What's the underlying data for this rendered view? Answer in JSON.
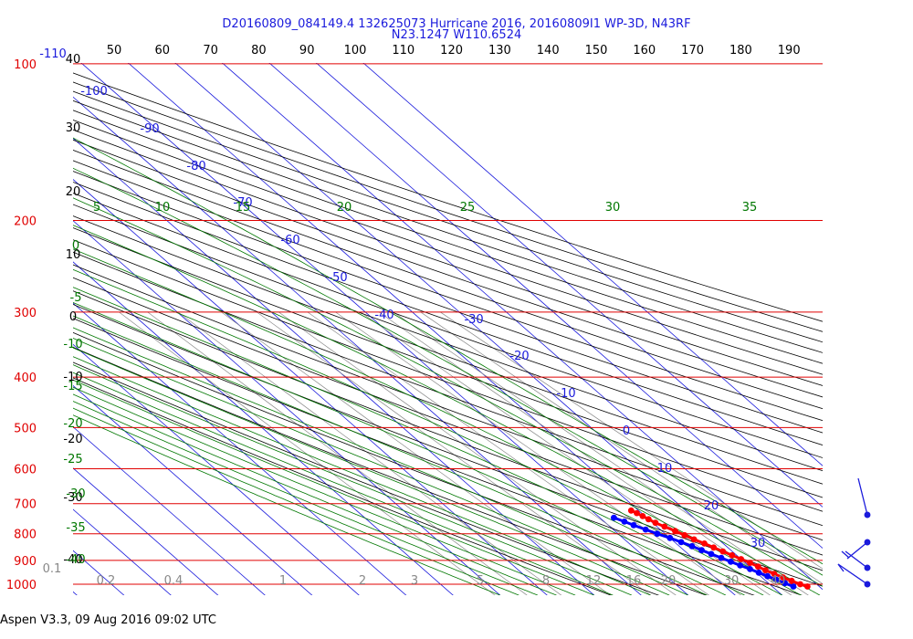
{
  "header": {
    "title_line1": "D20160809_084149.4 132625073 Hurricane 2016, 20160809I1 WP-3D, N43RF",
    "title_line2": "N23.1247 W110.6524"
  },
  "footer": {
    "version": "Aspen V3.3, 09 Aug 2016  09:02 UTC"
  },
  "colors": {
    "isobar": "#e00000",
    "isotherm": "#1a1adc",
    "dry_adiabat": "#000000",
    "moist_adiabat": "#007700",
    "mixing_ratio": "#888888",
    "temperature_trace": "#ff0000",
    "dewpoint_trace": "#0000ff"
  },
  "chart_data": {
    "type": "scatter",
    "diagram": "skew-T log-P",
    "pressure_levels_hPa": [
      "100",
      "200",
      "300",
      "400",
      "500",
      "600",
      "700",
      "800",
      "900",
      "1000"
    ],
    "isotherm_labels_C": [
      "-110",
      "-100",
      "-90",
      "-80",
      "-70",
      "-60",
      "-50",
      "-40",
      "-30",
      "-20",
      "-10",
      "0",
      "10",
      "20",
      "30"
    ],
    "top_axis_labels": [
      "50",
      "60",
      "70",
      "80",
      "90",
      "100",
      "110",
      "120",
      "130",
      "140",
      "150",
      "160",
      "170",
      "180",
      "190"
    ],
    "left_axis_labels": [
      "40",
      "30",
      "20",
      "10",
      "0",
      "-10",
      "-20",
      "-30",
      "-40"
    ],
    "theta_e_labels": [
      "5",
      "10",
      "15",
      "20",
      "25",
      "30",
      "35",
      "0",
      "-5",
      "-10",
      "-15",
      "-20",
      "-25",
      "-30",
      "-35",
      "-40"
    ],
    "mixing_ratio_labels": [
      "0.1",
      "0.2",
      "0.4",
      "1",
      "2",
      "3",
      "5",
      "8",
      "12",
      "16",
      "20",
      "30",
      "40"
    ],
    "temperature_C": [
      {
        "p": 1010,
        "t": 27.5
      },
      {
        "p": 1000,
        "t": 26.5
      },
      {
        "p": 985,
        "t": 25.5
      },
      {
        "p": 970,
        "t": 24.5
      },
      {
        "p": 955,
        "t": 23.5
      },
      {
        "p": 940,
        "t": 22.5
      },
      {
        "p": 925,
        "t": 21.8
      },
      {
        "p": 910,
        "t": 21.0
      },
      {
        "p": 895,
        "t": 20.0
      },
      {
        "p": 880,
        "t": 19.0
      },
      {
        "p": 865,
        "t": 18.0
      },
      {
        "p": 850,
        "t": 17.0
      },
      {
        "p": 835,
        "t": 16.0
      },
      {
        "p": 820,
        "t": 14.8
      },
      {
        "p": 805,
        "t": 13.8
      },
      {
        "p": 790,
        "t": 12.8
      },
      {
        "p": 775,
        "t": 11.6
      },
      {
        "p": 762,
        "t": 10.6
      },
      {
        "p": 750,
        "t": 10.0
      },
      {
        "p": 740,
        "t": 9.5
      },
      {
        "p": 730,
        "t": 9.0
      },
      {
        "p": 722,
        "t": 8.4
      }
    ],
    "dewpoint_C": [
      {
        "p": 1010,
        "t": 24.5
      },
      {
        "p": 995,
        "t": 23.5
      },
      {
        "p": 980,
        "t": 22.5
      },
      {
        "p": 965,
        "t": 21.5
      },
      {
        "p": 950,
        "t": 20.5
      },
      {
        "p": 935,
        "t": 19.5
      },
      {
        "p": 920,
        "t": 18.3
      },
      {
        "p": 905,
        "t": 17.2
      },
      {
        "p": 890,
        "t": 16.1
      },
      {
        "p": 875,
        "t": 14.9
      },
      {
        "p": 860,
        "t": 13.8
      },
      {
        "p": 845,
        "t": 12.7
      },
      {
        "p": 830,
        "t": 11.4
      },
      {
        "p": 815,
        "t": 10.0
      },
      {
        "p": 800,
        "t": 8.3
      },
      {
        "p": 785,
        "t": 6.9
      },
      {
        "p": 770,
        "t": 5.4
      },
      {
        "p": 758,
        "t": 4.3
      },
      {
        "p": 745,
        "t": 3.0
      }
    ]
  }
}
